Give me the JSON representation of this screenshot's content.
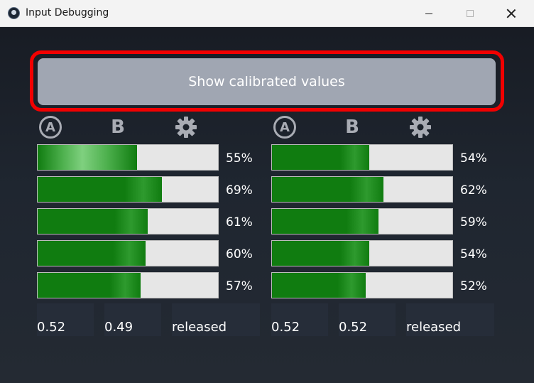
{
  "window": {
    "title": "Input Debugging"
  },
  "calibrate_button": {
    "label": "Show calibrated values"
  },
  "left_panel": {
    "icons": [
      "A",
      "B",
      "gear"
    ],
    "bars": [
      {
        "value": 55,
        "label": "55%"
      },
      {
        "value": 69,
        "label": "69%"
      },
      {
        "value": 61,
        "label": "61%"
      },
      {
        "value": 60,
        "label": "60%"
      },
      {
        "value": 57,
        "label": "57%"
      }
    ],
    "readouts": [
      "0.52",
      "0.49",
      "released"
    ]
  },
  "right_panel": {
    "icons": [
      "A",
      "B",
      "gear"
    ],
    "bars": [
      {
        "value": 54,
        "label": "54%"
      },
      {
        "value": 62,
        "label": "62%"
      },
      {
        "value": 59,
        "label": "59%"
      },
      {
        "value": 54,
        "label": "54%"
      },
      {
        "value": 52,
        "label": "52%"
      }
    ],
    "readouts": [
      "0.52",
      "0.52",
      "released"
    ]
  },
  "colors": {
    "accent_outline": "#f20000",
    "bar_fill": "#107c10",
    "bar_track": "#e6e6e6",
    "button_bg": "#a0a6b2"
  }
}
